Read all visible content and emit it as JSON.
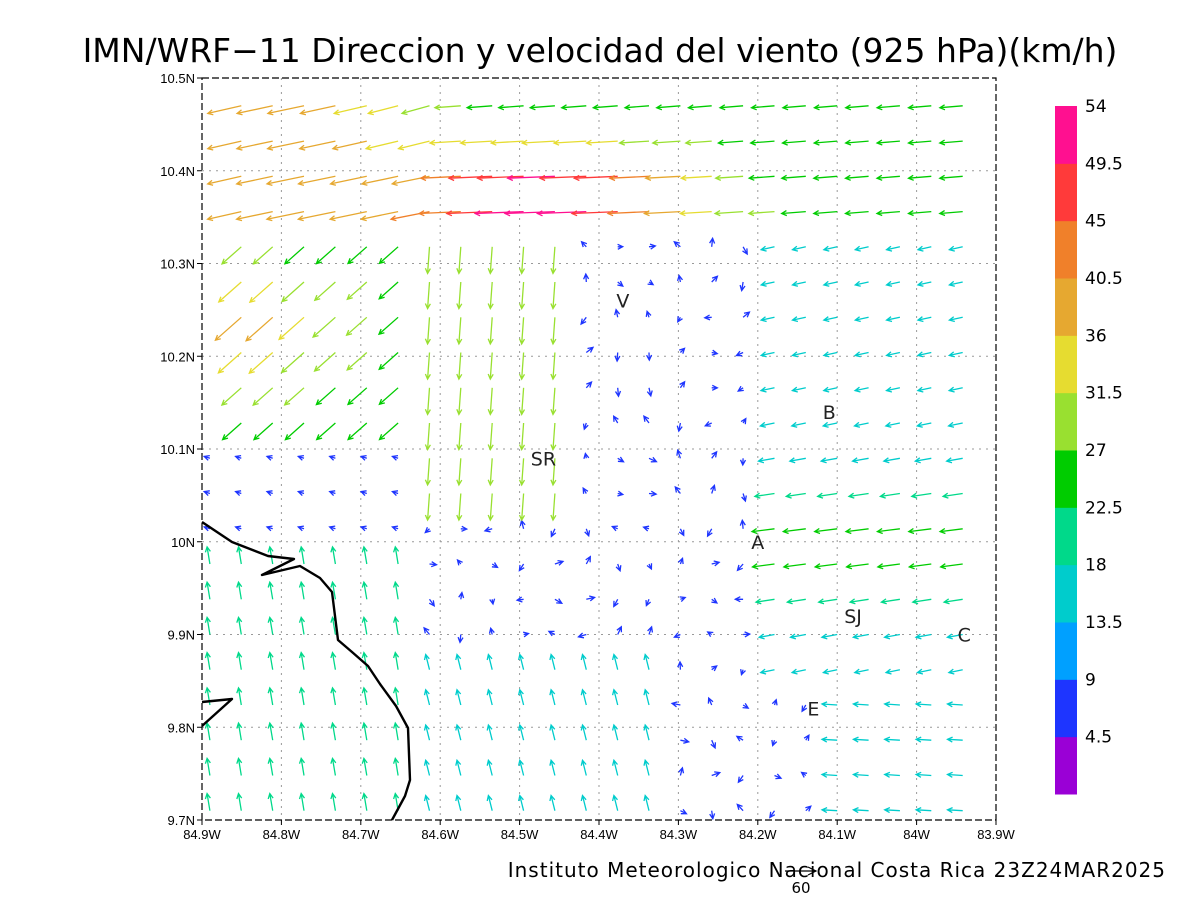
{
  "figure": {
    "title": "IMN/WRF−11 Direccion y velocidad del viento (925 hPa)(km/h)",
    "credit": "Instituto Meteorologico Nacional Costa Rica 23Z24MAR2025",
    "reference_vector": {
      "value": 60,
      "label": "60"
    }
  },
  "axes": {
    "lon_ticks": [
      "84.9W",
      "84.8W",
      "84.7W",
      "84.6W",
      "84.5W",
      "84.4W",
      "84.3W",
      "84.2W",
      "84.1W",
      "84W",
      "83.9W"
    ],
    "lat_ticks": [
      "9.7N",
      "9.8N",
      "9.9N",
      "10N",
      "10.1N",
      "10.2N",
      "10.3N",
      "10.4N",
      "10.5N"
    ],
    "lon_range": [
      -84.9,
      -83.9
    ],
    "lat_range": [
      9.7,
      10.5
    ],
    "grid": "dotted"
  },
  "colorbar": {
    "labels": [
      "4.5",
      "9",
      "13.5",
      "18",
      "22.5",
      "27",
      "31.5",
      "36",
      "40.5",
      "45",
      "49.5",
      "54"
    ],
    "colors": [
      "#9a00d6",
      "#1e35ff",
      "#00a0ff",
      "#00cccc",
      "#00d98a",
      "#00cc00",
      "#99e030",
      "#e6dc30",
      "#e6a830",
      "#f0802a",
      "#ff3a3a",
      "#ff1090"
    ]
  },
  "places": [
    {
      "label": "V",
      "lon": -84.37,
      "lat": 10.26
    },
    {
      "label": "B",
      "lon": -84.11,
      "lat": 10.14
    },
    {
      "label": "SR",
      "lon": -84.47,
      "lat": 10.09
    },
    {
      "label": "A",
      "lon": -84.2,
      "lat": 10.0
    },
    {
      "label": "SJ",
      "lon": -84.08,
      "lat": 9.92
    },
    {
      "label": "C",
      "lon": -83.94,
      "lat": 9.9
    },
    {
      "label": "E",
      "lon": -84.13,
      "lat": 9.82
    }
  ]
}
